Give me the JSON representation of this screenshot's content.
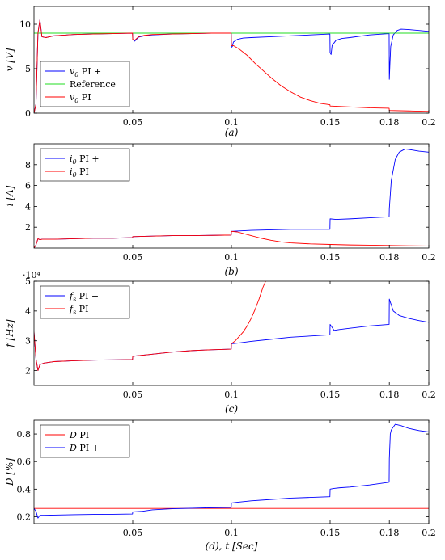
{
  "charts": [
    {
      "id": "a",
      "type": "line",
      "ylabel": "v [V]",
      "caption": "(a)",
      "xlim": [
        0,
        0.2
      ],
      "ylim": [
        0,
        12
      ],
      "xticks": [
        0.05,
        0.1,
        0.15,
        0.18,
        0.2
      ],
      "xtick_labels": [
        "0.05",
        "0.1",
        "0.15",
        "0.18",
        "0.2"
      ],
      "yticks": [
        0,
        5,
        10
      ],
      "ytick_labels": [
        "0",
        "5",
        "10"
      ],
      "multiplier": "",
      "legend_position": "bottom-left",
      "series": [
        {
          "name": "v0 PI +",
          "label_sym": "v",
          "label_sub": "0",
          "label_rest": " PI +",
          "color": "#0000ff",
          "x": [
            0,
            0.001,
            0.002,
            0.003,
            0.004,
            0.006,
            0.01,
            0.02,
            0.03,
            0.04,
            0.0499,
            0.05,
            0.051,
            0.053,
            0.056,
            0.06,
            0.07,
            0.08,
            0.09,
            0.0999,
            0.1,
            0.1005,
            0.101,
            0.103,
            0.106,
            0.11,
            0.12,
            0.13,
            0.14,
            0.1499,
            0.15,
            0.1505,
            0.151,
            0.153,
            0.156,
            0.16,
            0.17,
            0.1799,
            0.18,
            0.1803,
            0.1807,
            0.182,
            0.184,
            0.186,
            0.19,
            0.195,
            0.2
          ],
          "y": [
            0,
            1,
            9,
            10.5,
            8.6,
            8.5,
            8.7,
            8.85,
            8.9,
            8.95,
            9.0,
            8.3,
            8.1,
            8.55,
            8.7,
            8.8,
            8.9,
            8.95,
            9.0,
            9.0,
            7.4,
            7.5,
            8.0,
            8.3,
            8.45,
            8.5,
            8.6,
            8.7,
            8.8,
            8.9,
            6.8,
            6.6,
            7.6,
            8.2,
            8.4,
            8.5,
            8.8,
            8.95,
            3.8,
            5.5,
            7.5,
            8.8,
            9.3,
            9.45,
            9.4,
            9.3,
            9.2
          ]
        },
        {
          "name": "Reference",
          "label_sym": "",
          "label_sub": "",
          "label_rest": "Reference",
          "color": "#22dd22",
          "x": [
            0,
            0.2
          ],
          "y": [
            9,
            9
          ]
        },
        {
          "name": "v0 PI",
          "label_sym": "v",
          "label_sub": "0",
          "label_rest": " PI",
          "color": "#ff0000",
          "x": [
            0,
            0.001,
            0.002,
            0.003,
            0.004,
            0.006,
            0.01,
            0.02,
            0.03,
            0.04,
            0.0499,
            0.05,
            0.051,
            0.053,
            0.056,
            0.06,
            0.07,
            0.08,
            0.09,
            0.0999,
            0.1,
            0.101,
            0.104,
            0.108,
            0.112,
            0.116,
            0.12,
            0.125,
            0.13,
            0.135,
            0.14,
            0.145,
            0.1499,
            0.15,
            0.16,
            0.17,
            0.1799,
            0.18,
            0.19,
            0.2
          ],
          "y": [
            0,
            1,
            9,
            10.5,
            8.6,
            8.5,
            8.7,
            8.85,
            8.9,
            8.95,
            9.0,
            8.3,
            8.2,
            8.6,
            8.75,
            8.85,
            8.9,
            8.95,
            9.0,
            9.0,
            7.6,
            7.6,
            7.2,
            6.5,
            5.6,
            4.8,
            4.0,
            3.1,
            2.4,
            1.8,
            1.4,
            1.1,
            0.95,
            0.8,
            0.7,
            0.6,
            0.55,
            0.3,
            0.25,
            0.2
          ]
        }
      ]
    },
    {
      "id": "b",
      "type": "line",
      "ylabel": "i [A]",
      "caption": "(b)",
      "xlim": [
        0,
        0.2
      ],
      "ylim": [
        0,
        10
      ],
      "xticks": [
        0.05,
        0.1,
        0.15,
        0.18,
        0.2
      ],
      "xtick_labels": [
        "0.05",
        "0.1",
        "0.15",
        "0.18",
        "0.2"
      ],
      "yticks": [
        2,
        4,
        6,
        8
      ],
      "ytick_labels": [
        "2",
        "4",
        "6",
        "8"
      ],
      "multiplier": "",
      "legend_position": "top-left",
      "series": [
        {
          "name": "i0 PI +",
          "label_sym": "i",
          "label_sub": "0",
          "label_rest": " PI +",
          "color": "#0000ff",
          "x": [
            0,
            0.001,
            0.002,
            0.003,
            0.004,
            0.006,
            0.01,
            0.02,
            0.03,
            0.04,
            0.0499,
            0.05,
            0.06,
            0.07,
            0.08,
            0.09,
            0.0999,
            0.1,
            0.11,
            0.12,
            0.13,
            0.14,
            0.1499,
            0.15,
            0.153,
            0.16,
            0.17,
            0.1799,
            0.18,
            0.181,
            0.183,
            0.185,
            0.188,
            0.19,
            0.195,
            0.2
          ],
          "y": [
            0,
            0.3,
            0.9,
            0.8,
            0.85,
            0.85,
            0.85,
            0.9,
            0.95,
            0.95,
            1.0,
            1.1,
            1.15,
            1.2,
            1.2,
            1.22,
            1.25,
            1.6,
            1.7,
            1.75,
            1.8,
            1.8,
            1.8,
            2.8,
            2.75,
            2.8,
            2.9,
            3.0,
            3.8,
            6.5,
            8.5,
            9.2,
            9.5,
            9.45,
            9.3,
            9.2
          ]
        },
        {
          "name": "i0 PI",
          "label_sym": "i",
          "label_sub": "0",
          "label_rest": " PI",
          "color": "#ff0000",
          "x": [
            0,
            0.001,
            0.002,
            0.003,
            0.004,
            0.006,
            0.01,
            0.02,
            0.03,
            0.04,
            0.0499,
            0.05,
            0.06,
            0.07,
            0.08,
            0.09,
            0.0999,
            0.1,
            0.103,
            0.106,
            0.11,
            0.115,
            0.12,
            0.125,
            0.13,
            0.14,
            0.15,
            0.16,
            0.17,
            0.18,
            0.19,
            0.2
          ],
          "y": [
            0,
            0.3,
            0.9,
            0.8,
            0.85,
            0.85,
            0.85,
            0.9,
            0.95,
            0.95,
            1.0,
            1.1,
            1.15,
            1.2,
            1.2,
            1.22,
            1.25,
            1.6,
            1.55,
            1.4,
            1.2,
            0.95,
            0.75,
            0.6,
            0.5,
            0.4,
            0.35,
            0.3,
            0.28,
            0.25,
            0.22,
            0.2
          ]
        }
      ]
    },
    {
      "id": "c",
      "type": "line",
      "ylabel": "f [Hz]",
      "caption": "(c)",
      "xlim": [
        0,
        0.2
      ],
      "ylim": [
        15000,
        50000
      ],
      "xticks": [
        0.05,
        0.1,
        0.15,
        0.18,
        0.2
      ],
      "xtick_labels": [
        "0.05",
        "0.1",
        "0.15",
        "0.18",
        "0.2"
      ],
      "yticks": [
        20000,
        30000,
        40000,
        50000
      ],
      "ytick_labels": [
        "2",
        "3",
        "4",
        "5"
      ],
      "multiplier": "·10⁴",
      "legend_position": "top-left",
      "series": [
        {
          "name": "fs PI +",
          "label_sym": "f",
          "label_sub": "s",
          "label_rest": " PI +",
          "color": "#0000ff",
          "x": [
            0,
            0.001,
            0.002,
            0.003,
            0.005,
            0.01,
            0.02,
            0.03,
            0.04,
            0.0499,
            0.05,
            0.06,
            0.07,
            0.08,
            0.09,
            0.0999,
            0.1,
            0.103,
            0.11,
            0.12,
            0.13,
            0.14,
            0.1499,
            0.15,
            0.1505,
            0.152,
            0.155,
            0.16,
            0.17,
            0.1799,
            0.18,
            0.1805,
            0.182,
            0.185,
            0.19,
            0.195,
            0.2
          ],
          "y": [
            33000,
            24000,
            20000,
            22000,
            22500,
            23000,
            23300,
            23500,
            23600,
            23700,
            24800,
            25500,
            26200,
            26700,
            27000,
            27200,
            29000,
            29200,
            29800,
            30500,
            31200,
            31600,
            32000,
            35500,
            35000,
            33500,
            33800,
            34200,
            35000,
            35500,
            44000,
            43000,
            40000,
            38500,
            37500,
            36800,
            36200
          ]
        },
        {
          "name": "fs PI",
          "label_sym": "f",
          "label_sub": "s",
          "label_rest": " PI",
          "color": "#ff0000",
          "x": [
            0,
            0.001,
            0.002,
            0.003,
            0.005,
            0.01,
            0.02,
            0.03,
            0.04,
            0.0499,
            0.05,
            0.06,
            0.07,
            0.08,
            0.09,
            0.0999,
            0.1,
            0.102,
            0.104,
            0.106,
            0.108,
            0.11,
            0.112,
            0.114,
            0.116,
            0.118
          ],
          "y": [
            33000,
            24000,
            20000,
            22000,
            22500,
            23000,
            23300,
            23500,
            23600,
            23700,
            24800,
            25500,
            26200,
            26700,
            27000,
            27200,
            29000,
            30000,
            31500,
            33000,
            35000,
            37500,
            40500,
            44000,
            48000,
            51000
          ]
        }
      ]
    },
    {
      "id": "d",
      "type": "line",
      "ylabel": "D [%]",
      "caption": "(d), t [Sec]",
      "xlim": [
        0,
        0.2
      ],
      "ylim": [
        0.15,
        0.9
      ],
      "xticks": [
        0.05,
        0.1,
        0.15,
        0.18,
        0.2
      ],
      "xtick_labels": [
        "0.05",
        "0.1",
        "0.15",
        "0.18",
        "0.2"
      ],
      "yticks": [
        0.2,
        0.4,
        0.6,
        0.8
      ],
      "ytick_labels": [
        "0.2",
        "0.4",
        "0.6",
        "0.8"
      ],
      "multiplier": "",
      "legend_position": "top-left",
      "series": [
        {
          "name": "D PI",
          "label_sym": "D",
          "label_sub": "",
          "label_rest": " PI",
          "color": "#ff0000",
          "x": [
            0,
            0.2
          ],
          "y": [
            0.26,
            0.26
          ]
        },
        {
          "name": "D PI +",
          "label_sym": "D",
          "label_sub": "",
          "label_rest": " PI +",
          "color": "#0000ff",
          "x": [
            0,
            0.001,
            0.002,
            0.003,
            0.005,
            0.01,
            0.02,
            0.03,
            0.04,
            0.0499,
            0.05,
            0.055,
            0.06,
            0.07,
            0.08,
            0.09,
            0.0999,
            0.1,
            0.103,
            0.11,
            0.12,
            0.13,
            0.14,
            0.1499,
            0.15,
            0.152,
            0.155,
            0.16,
            0.17,
            0.1799,
            0.18,
            0.1805,
            0.181,
            0.183,
            0.186,
            0.19,
            0.195,
            0.2
          ],
          "y": [
            0.26,
            0.24,
            0.19,
            0.21,
            0.21,
            0.212,
            0.215,
            0.217,
            0.218,
            0.22,
            0.235,
            0.24,
            0.25,
            0.258,
            0.262,
            0.265,
            0.267,
            0.3,
            0.305,
            0.315,
            0.325,
            0.335,
            0.34,
            0.345,
            0.4,
            0.405,
            0.41,
            0.415,
            0.43,
            0.45,
            0.62,
            0.8,
            0.83,
            0.87,
            0.86,
            0.84,
            0.825,
            0.815
          ]
        }
      ]
    }
  ]
}
